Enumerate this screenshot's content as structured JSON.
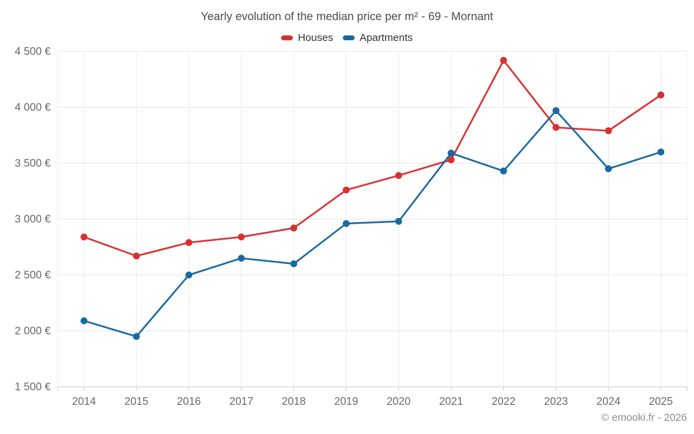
{
  "footer": "© emooki.fr - 2026",
  "chart_data": {
    "type": "line",
    "title": "Yearly evolution of the median price per m² - 69 - Mornant",
    "categories": [
      "2014",
      "2015",
      "2016",
      "2017",
      "2018",
      "2019",
      "2020",
      "2021",
      "2022",
      "2023",
      "2024",
      "2025"
    ],
    "series": [
      {
        "name": "Houses",
        "color": "#d9302e",
        "values": [
          2840,
          2670,
          2790,
          2840,
          2920,
          3260,
          3390,
          3530,
          4420,
          3820,
          3790,
          4110
        ]
      },
      {
        "name": "Apartments",
        "color": "#17699f",
        "values": [
          2090,
          1950,
          2500,
          2650,
          2600,
          2960,
          2980,
          3590,
          3430,
          3970,
          3450,
          3600
        ]
      }
    ],
    "yticks": [
      1500,
      2000,
      2500,
      3000,
      3500,
      4000,
      4500
    ],
    "ytick_labels": [
      "1 500 €",
      "2 000 €",
      "2 500 €",
      "3 000 €",
      "3 500 €",
      "4 000 €",
      "4 500 €"
    ],
    "ylim": [
      1500,
      4500
    ],
    "xlabel": "",
    "ylabel": "",
    "grid": true,
    "legend_position": "top",
    "currency_suffix": "€"
  }
}
